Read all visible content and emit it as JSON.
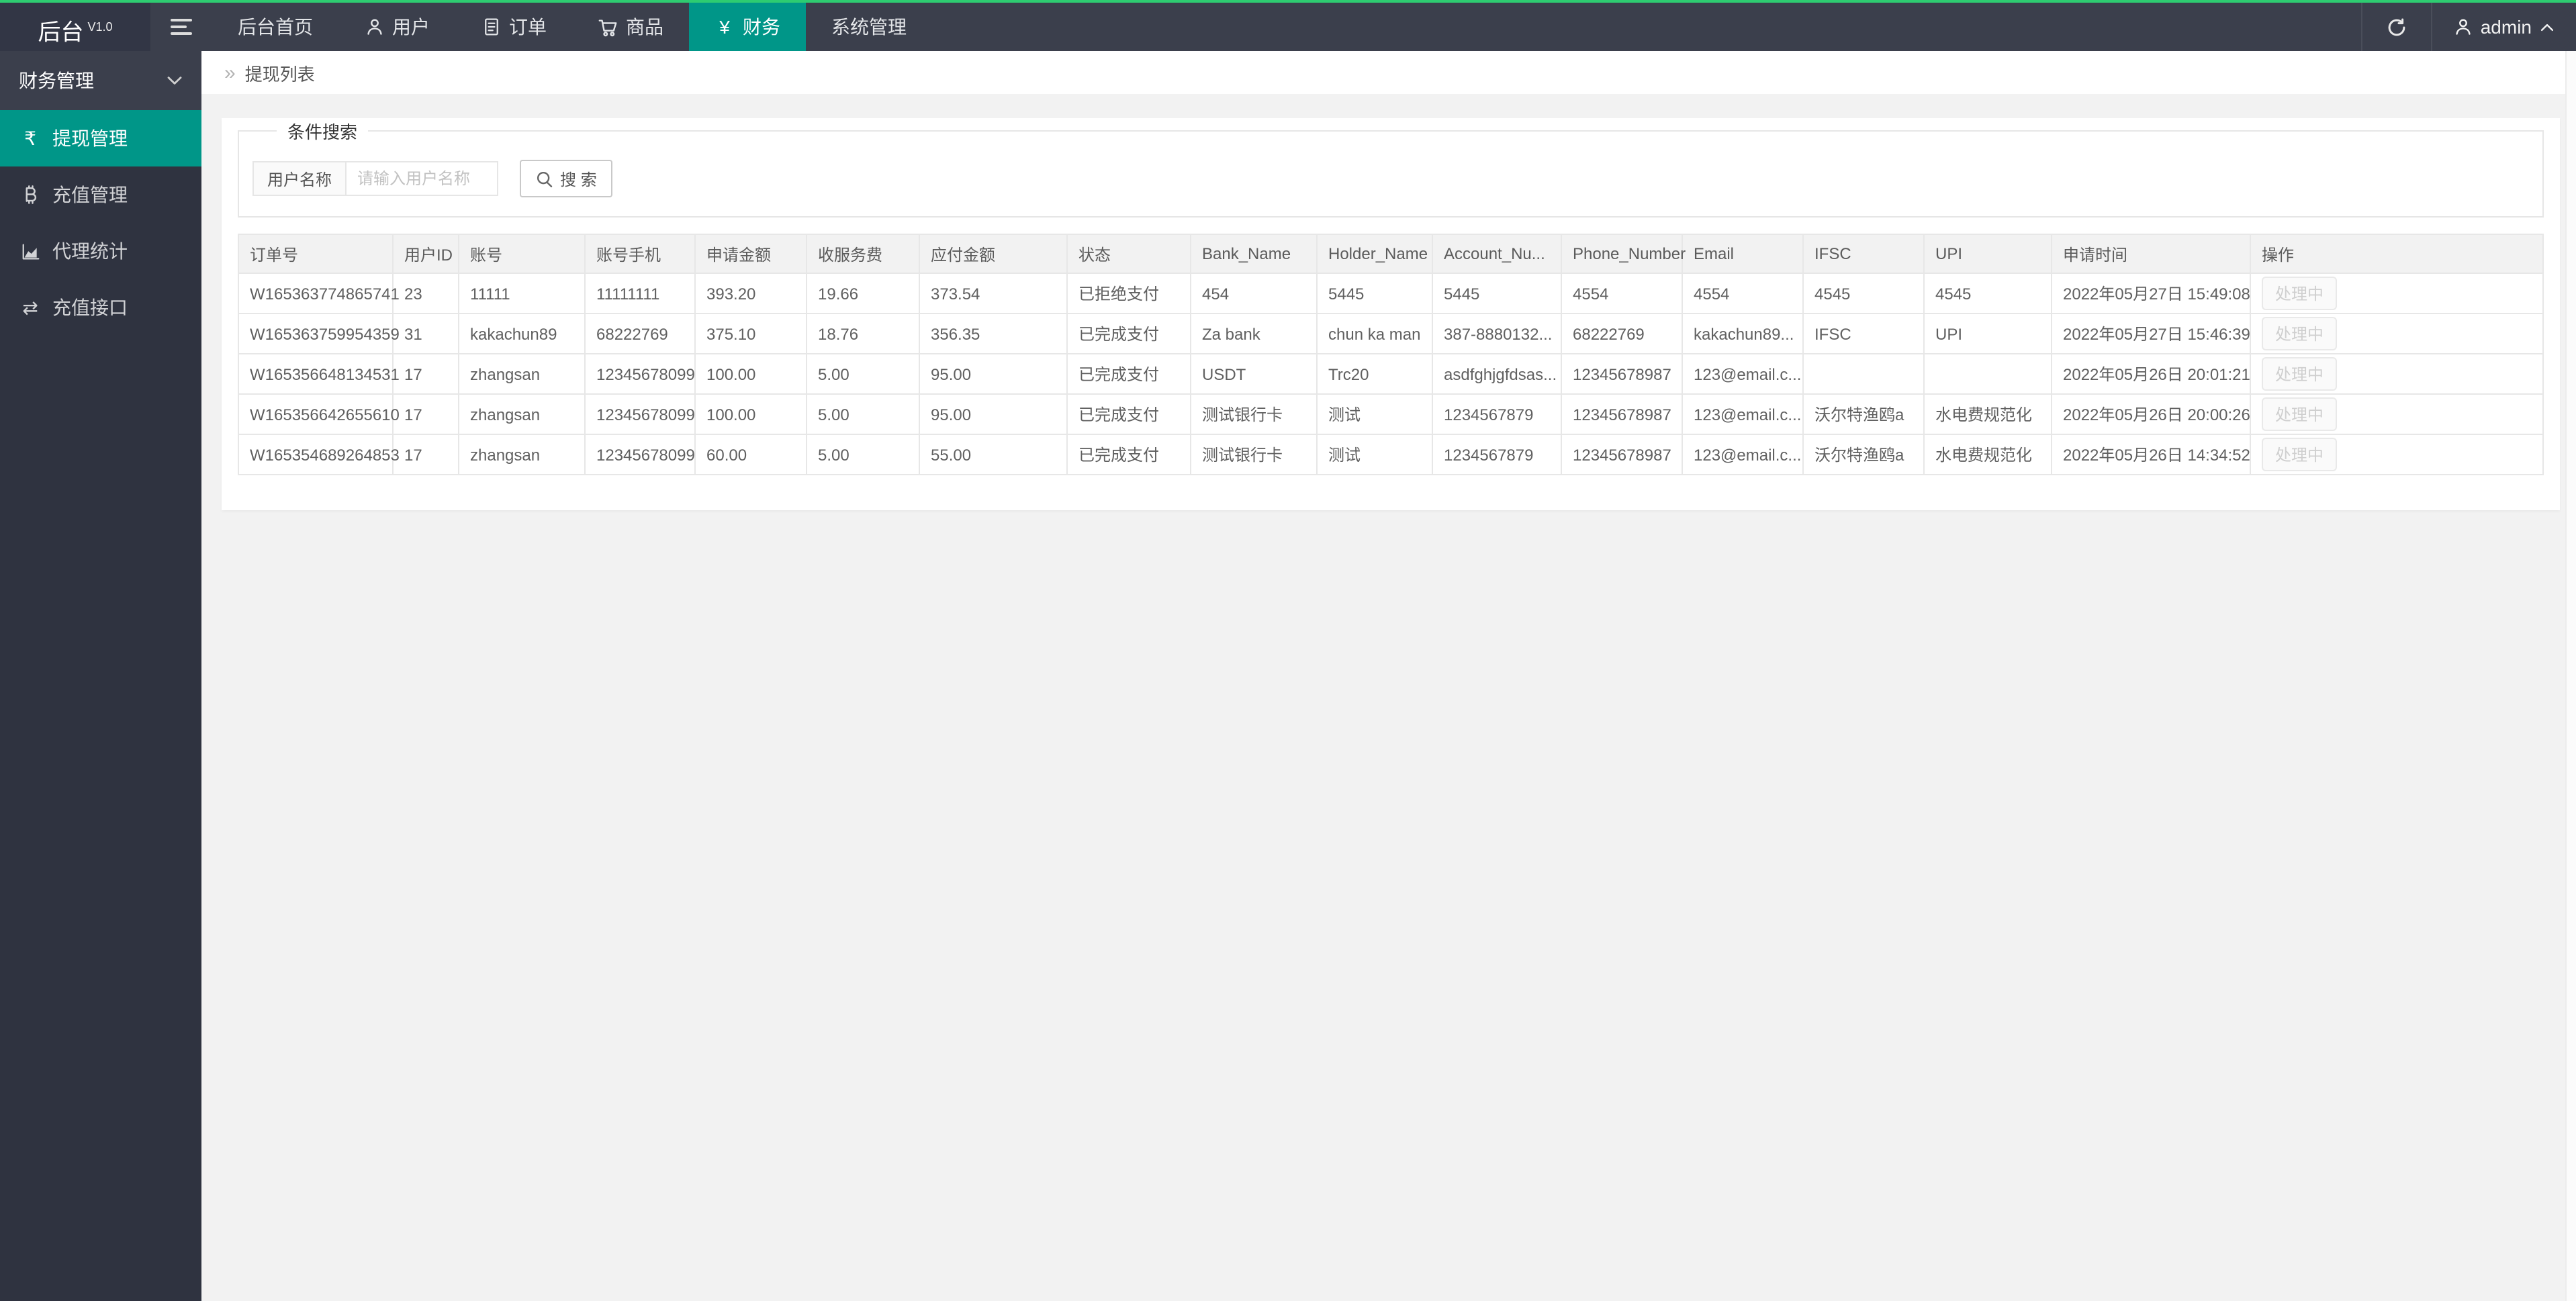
{
  "app": {
    "title": "后台",
    "version": "V1.0"
  },
  "colors": {
    "accent_line": "#2ecc71",
    "active_teal": "#009688",
    "status_rejected": "#f56c6c",
    "status_completed": "#3cb93c"
  },
  "icons": {
    "yen": "¥",
    "rupee": "₹",
    "transfer": "⇄",
    "double_arrow": "»"
  },
  "navbar": {
    "menu": [
      {
        "label": "后台首页",
        "icon": null,
        "active": false
      },
      {
        "label": "用户",
        "icon": "user-icon",
        "active": false
      },
      {
        "label": "订单",
        "icon": "document-icon",
        "active": false
      },
      {
        "label": "商品",
        "icon": "cart-icon",
        "active": false
      },
      {
        "label": "财务",
        "icon": "yen-icon",
        "active": true
      },
      {
        "label": "系统管理",
        "icon": null,
        "active": false
      }
    ],
    "username": "admin"
  },
  "sidebar": {
    "group_label": "财务管理",
    "items": [
      {
        "label": "提现管理",
        "icon": "rupee-icon",
        "active": true
      },
      {
        "label": "充值管理",
        "icon": "bitcoin-icon",
        "active": false
      },
      {
        "label": "代理统计",
        "icon": "chart-icon",
        "active": false
      },
      {
        "label": "充值接口",
        "icon": "transfer-icon",
        "active": false
      }
    ]
  },
  "breadcrumb": {
    "label": "提现列表"
  },
  "search": {
    "legend": "条件搜索",
    "field_label": "用户名称",
    "placeholder": "请输入用户名称",
    "button_label": "搜 索"
  },
  "table": {
    "columns": [
      "订单号",
      "用户ID",
      "账号",
      "账号手机",
      "申请金额",
      "收服务费",
      "应付金额",
      "状态",
      "Bank_Name",
      "Holder_Name",
      "Account_Nu...",
      "Phone_Number",
      "Email",
      "IFSC",
      "UPI",
      "申请时间",
      "操作"
    ],
    "action_label": "处理中",
    "status_column_index": 7,
    "rows": [
      {
        "status_type": "rejected",
        "cells": [
          "W165363774865741",
          "23",
          "11111",
          "11111111",
          "393.20",
          "19.66",
          "373.54",
          "已拒绝支付",
          "454",
          "5445",
          "5445",
          "4554",
          "4554",
          "4545",
          "4545",
          "2022年05月27日 15:49:08"
        ]
      },
      {
        "status_type": "completed",
        "cells": [
          "W165363759954359",
          "31",
          "kakachun89",
          "68222769",
          "375.10",
          "18.76",
          "356.35",
          "已完成支付",
          "Za bank",
          "chun ka man",
          "387-8880132...",
          "68222769",
          "kakachun89...",
          "IFSC",
          "UPI",
          "2022年05月27日 15:46:39"
        ]
      },
      {
        "status_type": "completed",
        "cells": [
          "W165356648134531",
          "17",
          "zhangsan",
          "12345678099",
          "100.00",
          "5.00",
          "95.00",
          "已完成支付",
          "USDT",
          "Trc20",
          "asdfghjgfdsas...",
          "12345678987",
          "123@email.c...",
          "",
          "",
          "2022年05月26日 20:01:21"
        ]
      },
      {
        "status_type": "completed",
        "cells": [
          "W165356642655610",
          "17",
          "zhangsan",
          "12345678099",
          "100.00",
          "5.00",
          "95.00",
          "已完成支付",
          "测试银行卡",
          "测试",
          "1234567879",
          "12345678987",
          "123@email.c...",
          "沃尔特渔鸥a",
          "水电费规范化",
          "2022年05月26日 20:00:26"
        ]
      },
      {
        "status_type": "completed",
        "cells": [
          "W165354689264853",
          "17",
          "zhangsan",
          "12345678099",
          "60.00",
          "5.00",
          "55.00",
          "已完成支付",
          "测试银行卡",
          "测试",
          "1234567879",
          "12345678987",
          "123@email.c...",
          "沃尔特渔鸥a",
          "水电费规范化",
          "2022年05月26日 14:34:52"
        ]
      }
    ]
  }
}
